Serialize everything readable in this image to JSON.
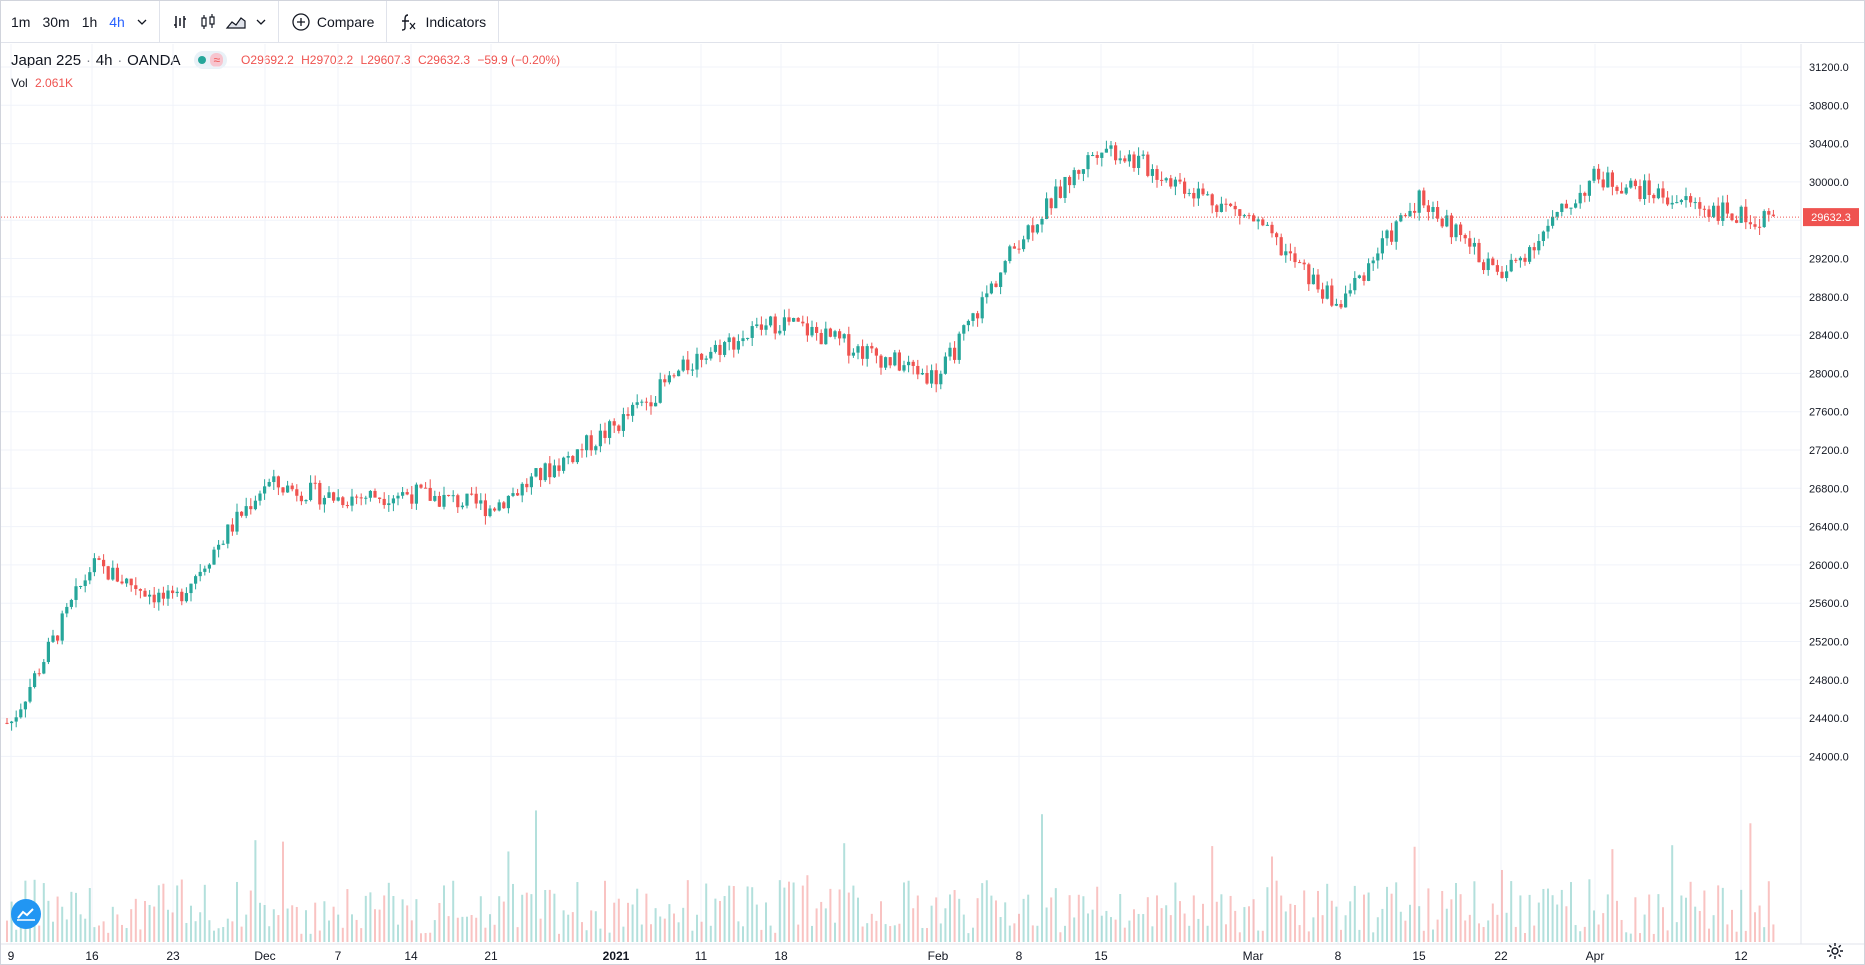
{
  "toolbar": {
    "intervals": [
      "1m",
      "30m",
      "1h",
      "4h"
    ],
    "active_interval": "4h",
    "compare_label": "Compare",
    "indicators_label": "Indicators"
  },
  "legend": {
    "symbol": "Japan 225",
    "sep1": "·",
    "interval": "4h",
    "sep2": "·",
    "source": "OANDA",
    "open_key": "O",
    "open": "29692.2",
    "high_key": "H",
    "high": "29702.2",
    "low_key": "L",
    "low": "29607.3",
    "close_key": "C",
    "close": "29632.3",
    "change": "−59.9 (−0.20%)"
  },
  "volume_legend": {
    "label": "Vol",
    "value": "2.061K"
  },
  "colors": {
    "up": "#26a69a",
    "down": "#ef5350",
    "grid": "#f0f3fa",
    "accent": "#2962ff"
  },
  "chart_data": {
    "type": "candlestick",
    "y_ticks": [
      "31200.0",
      "30800.0",
      "30400.0",
      "30000.0",
      "29600.0",
      "29200.0",
      "28800.0",
      "28400.0",
      "28000.0",
      "27600.0",
      "27200.0",
      "26800.0",
      "26400.0",
      "26000.0",
      "25600.0",
      "25200.0",
      "24800.0",
      "24400.0",
      "24000.0"
    ],
    "x_ticks": [
      "9",
      "16",
      "23",
      "Dec",
      "7",
      "14",
      "21",
      "2021",
      "11",
      "18",
      "Feb",
      "8",
      "15",
      "Mar",
      "8",
      "15",
      "22",
      "Apr",
      "12"
    ],
    "last_price": "29632.3",
    "close_path": [
      [
        9,
        24350
      ],
      [
        16,
        26000
      ],
      [
        23,
        25600
      ],
      [
        "Dec",
        26850
      ],
      [
        7,
        26700
      ],
      [
        14,
        26750
      ],
      [
        21,
        26600
      ],
      [
        "2021",
        27450
      ],
      [
        11,
        28200
      ],
      [
        18,
        28550
      ],
      [
        "Feb",
        27950
      ],
      [
        8,
        29400
      ],
      [
        15,
        30400
      ],
      [
        "Mar",
        29600
      ],
      [
        8,
        28700
      ],
      [
        15,
        29850
      ],
      [
        22,
        29000
      ],
      [
        "Apr",
        30050
      ],
      [
        12,
        29632
      ]
    ]
  },
  "icons": {
    "bar_style": "bar-style-icon",
    "candle": "candle-icon",
    "area": "area-icon",
    "compare": "plus-circle-icon",
    "indicators": "fx-icon",
    "settings": "gear-icon",
    "logo": "tradingview-logo-icon"
  }
}
